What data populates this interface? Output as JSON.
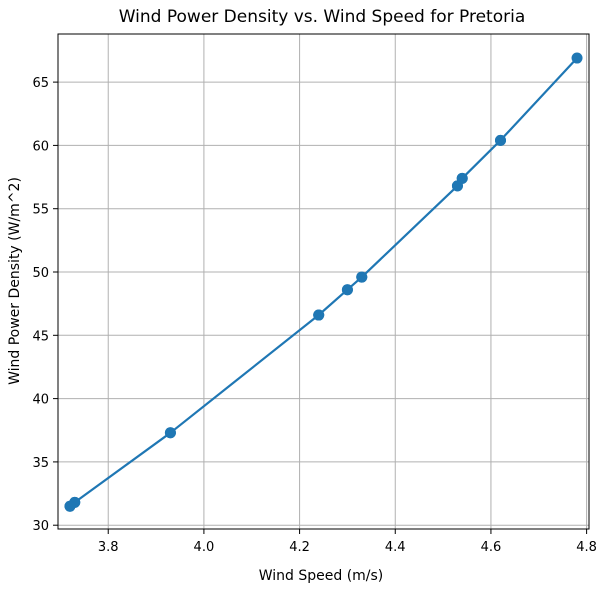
{
  "chart_data": {
    "type": "line",
    "title": "Wind Power Density vs. Wind Speed for Pretoria",
    "xlabel": "Wind Speed (m/s)",
    "ylabel": "Wind Power Density (W/m^2)",
    "xlim": [
      3.695,
      4.805
    ],
    "ylim": [
      29.7,
      68.8
    ],
    "xticks": [
      3.8,
      4.0,
      4.2,
      4.4,
      4.6,
      4.8
    ],
    "xtick_labels": [
      "3.8",
      "4.0",
      "4.2",
      "4.4",
      "4.6",
      "4.8"
    ],
    "yticks": [
      30,
      35,
      40,
      45,
      50,
      55,
      60,
      65
    ],
    "ytick_labels": [
      "30",
      "35",
      "40",
      "45",
      "50",
      "55",
      "60",
      "65"
    ],
    "grid": true,
    "color": "#1f77b4",
    "series": [
      {
        "x": [
          3.72,
          3.73,
          3.93,
          4.24,
          4.3,
          4.33,
          4.53,
          4.54,
          4.62,
          4.78,
          4.62,
          4.54,
          4.53,
          4.33,
          4.3,
          4.24,
          3.93,
          3.73,
          3.72
        ],
        "y": [
          31.5,
          31.8,
          37.3,
          46.6,
          48.6,
          49.6,
          56.8,
          57.4,
          60.4,
          66.9,
          60.4,
          57.4,
          56.8,
          49.6,
          48.6,
          46.6,
          37.3,
          31.8,
          31.5
        ]
      }
    ]
  }
}
